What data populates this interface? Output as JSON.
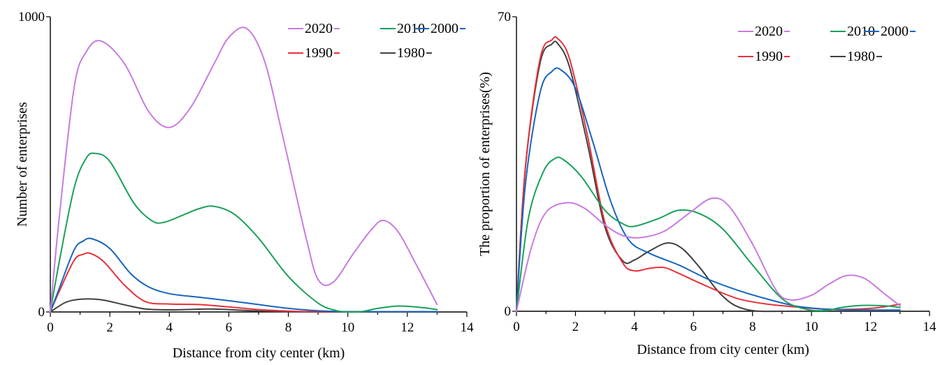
{
  "chart_data": [
    {
      "type": "line",
      "xlabel": "Distance from city center (km)",
      "ylabel": "Number of enterprises",
      "xlim": [
        0,
        14
      ],
      "ylim": [
        0,
        1000
      ],
      "x_ticks": [
        "0",
        "2",
        "4",
        "6",
        "8",
        "10",
        "12",
        "14"
      ],
      "y_ticks": [
        "0",
        "1000"
      ],
      "legend_position": "top-right",
      "series": [
        {
          "name": "2020",
          "color": "#c77be0",
          "x": [
            0,
            0.3,
            0.8,
            1.2,
            1.7,
            2.5,
            3.3,
            4.0,
            4.7,
            5.5,
            6.0,
            6.6,
            7.2,
            7.8,
            8.6,
            9.0,
            9.5,
            10.2,
            10.8,
            11.2,
            11.7,
            12.3,
            13.0
          ],
          "y": [
            0,
            320,
            760,
            880,
            918,
            840,
            680,
            625,
            690,
            840,
            930,
            960,
            850,
            600,
            250,
            110,
            100,
            200,
            280,
            310,
            270,
            160,
            25
          ]
        },
        {
          "name": "2010",
          "color": "#1aa05a",
          "x": [
            0,
            0.3,
            0.8,
            1.2,
            1.5,
            2.0,
            2.8,
            3.4,
            3.8,
            4.5,
            5.0,
            5.5,
            6.2,
            7.0,
            8.0,
            9.0,
            9.6,
            10.0,
            10.5,
            11.0,
            11.7,
            12.5,
            13.0
          ],
          "y": [
            0,
            170,
            420,
            520,
            537,
            510,
            370,
            310,
            303,
            330,
            350,
            358,
            330,
            250,
            120,
            30,
            5,
            0,
            2,
            12,
            20,
            15,
            8
          ]
        },
        {
          "name": "2000",
          "color": "#1565c0",
          "x": [
            0,
            0.3,
            0.8,
            1.1,
            1.4,
            2.0,
            2.7,
            3.3,
            4.0,
            5.0,
            6.0,
            7.0,
            8.0,
            9.0,
            10.0,
            11.0,
            12.0,
            13.0
          ],
          "y": [
            0,
            80,
            210,
            240,
            248,
            215,
            130,
            85,
            62,
            50,
            38,
            25,
            12,
            4,
            1,
            1,
            1,
            1
          ]
        },
        {
          "name": "1990",
          "color": "#e8303a",
          "x": [
            0,
            0.3,
            0.8,
            1.1,
            1.35,
            1.8,
            2.5,
            3.2,
            4.0,
            5.0,
            6.0,
            7.0,
            8.0,
            9.0,
            10.0,
            11.0,
            12.0,
            13.0
          ],
          "y": [
            0,
            70,
            175,
            195,
            198,
            170,
            90,
            35,
            27,
            25,
            17,
            8,
            3,
            1,
            1,
            1,
            1,
            1
          ]
        },
        {
          "name": "1980",
          "color": "#404040",
          "x": [
            0,
            0.5,
            0.9,
            1.3,
            1.8,
            2.5,
            3.2,
            4.0,
            4.8,
            5.3,
            6.0,
            7.0,
            8.0,
            9.0,
            10.0,
            11.0,
            12.0,
            13.0
          ],
          "y": [
            0,
            32,
            42,
            44,
            40,
            24,
            10,
            7,
            9,
            10,
            8,
            3,
            1,
            0,
            0,
            0,
            0,
            0
          ]
        }
      ]
    },
    {
      "type": "line",
      "xlabel": "Distance from city center (km)",
      "ylabel": "The proportion of enterprises(%)",
      "xlim": [
        0,
        14
      ],
      "ylim": [
        0,
        70
      ],
      "x_ticks": [
        "0",
        "2",
        "4",
        "6",
        "8",
        "10",
        "12",
        "14"
      ],
      "y_ticks": [
        "0",
        "70"
      ],
      "legend_position": "top-right",
      "series": [
        {
          "name": "2020",
          "color": "#c77be0",
          "x": [
            0,
            0.5,
            1.0,
            1.7,
            2.3,
            3.0,
            3.6,
            4.2,
            5.0,
            5.8,
            6.6,
            7.2,
            8.0,
            8.8,
            9.3,
            10.0,
            10.6,
            11.2,
            11.8,
            12.5,
            13.0
          ],
          "y": [
            0,
            15,
            23.5,
            25.8,
            24.5,
            20.5,
            18,
            17.5,
            19,
            23,
            26.8,
            25,
            16,
            5,
            2.7,
            3.8,
            6.5,
            8.5,
            7.8,
            4,
            1.3
          ]
        },
        {
          "name": "2010",
          "color": "#1aa05a",
          "x": [
            0,
            0.4,
            0.9,
            1.3,
            1.6,
            2.2,
            3.0,
            3.6,
            4.0,
            4.8,
            5.5,
            6.2,
            7.0,
            8.0,
            9.0,
            9.8,
            10.5,
            11.0,
            11.7,
            12.5,
            13.0
          ],
          "y": [
            0,
            22,
            33,
            36.3,
            36,
            32,
            24,
            20.8,
            20.2,
            22,
            24,
            23.2,
            19.5,
            11,
            3,
            0.5,
            0.2,
            0.9,
            1.4,
            1.3,
            0.9
          ]
        },
        {
          "name": "2000",
          "color": "#1565c0",
          "x": [
            0,
            0.3,
            0.8,
            1.2,
            1.5,
            2.0,
            2.6,
            3.2,
            3.8,
            4.5,
            5.5,
            6.5,
            7.5,
            8.5,
            9.5,
            10.5,
            11.5,
            13.0
          ],
          "y": [
            0,
            30,
            52,
            57,
            57.4,
            53,
            40,
            26,
            17,
            13.8,
            11,
            7.6,
            5,
            2.9,
            1.2,
            0.5,
            0.3,
            0.3
          ]
        },
        {
          "name": "1990",
          "color": "#e8303a",
          "x": [
            0,
            0.3,
            0.8,
            1.2,
            1.4,
            1.8,
            2.4,
            3.0,
            3.6,
            4.0,
            4.5,
            5.0,
            5.5,
            6.5,
            7.5,
            8.5,
            9.5,
            10.5,
            11.5,
            12.3,
            13.0
          ],
          "y": [
            0,
            34,
            60,
            64.5,
            64.8,
            60,
            42,
            21,
            11.5,
            9.6,
            10.2,
            10.4,
            9,
            5.8,
            3,
            1.7,
            1,
            0.5,
            0.5,
            0.9,
            1.7
          ]
        },
        {
          "name": "1980",
          "color": "#404040",
          "x": [
            0,
            0.3,
            0.8,
            1.2,
            1.4,
            1.8,
            2.4,
            3.0,
            3.6,
            4.0,
            4.5,
            5.1,
            5.6,
            6.2,
            6.8,
            7.3,
            7.8,
            8.3,
            9.0,
            10.0,
            11.0,
            12.0,
            13.0
          ],
          "y": [
            0,
            34,
            59,
            63.5,
            63.6,
            58,
            40,
            20,
            12,
            12.2,
            14.3,
            16.2,
            15,
            10.5,
            5,
            1.8,
            0.4,
            0,
            0,
            0,
            0,
            0,
            0
          ]
        }
      ]
    }
  ]
}
